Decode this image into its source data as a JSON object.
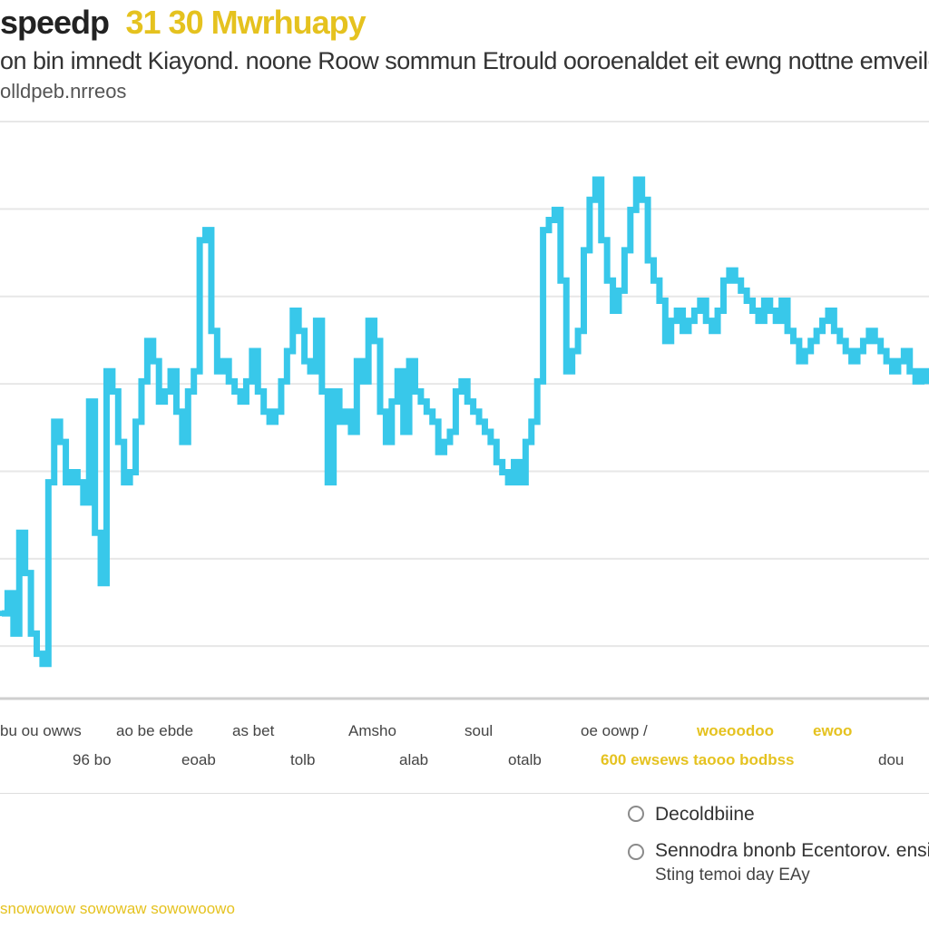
{
  "header": {
    "title": "speedp",
    "title_accent": "31 30 Mwrhuapy",
    "subtitle": "on bin imnedt Kiayond. noone Roow sommun Etrould ooroenaldet eit ewng nottne emveiler",
    "subtitle2": "olldpeb.nrreos"
  },
  "colors": {
    "series": "#38c8ea",
    "accent": "#e5c21f",
    "grid": "#e7e7e7",
    "axis": "#cfcfcf"
  },
  "chart_data": {
    "type": "line",
    "step": true,
    "grid": true,
    "ylim": [
      0,
      100
    ],
    "x": [
      0,
      1,
      2,
      3,
      4,
      5,
      6,
      7,
      8,
      9,
      10,
      11,
      12,
      13,
      14,
      15,
      16,
      17,
      18,
      19,
      20,
      21,
      22,
      23,
      24,
      25,
      26,
      27,
      28,
      29,
      30,
      31,
      32,
      33,
      34,
      35,
      36,
      37,
      38,
      39,
      40,
      41,
      42,
      43,
      44,
      45,
      46,
      47,
      48,
      49,
      50,
      51,
      52,
      53,
      54,
      55,
      56,
      57,
      58,
      59,
      60,
      61,
      62,
      63,
      64,
      65,
      66,
      67,
      68,
      69,
      70,
      71,
      72,
      73,
      74,
      75,
      76,
      77,
      78,
      79,
      80,
      81,
      82,
      83,
      84,
      85,
      86,
      87,
      88,
      89,
      90,
      91,
      92,
      93,
      94,
      95,
      96,
      97,
      98,
      99,
      100,
      101,
      102,
      103,
      104,
      105,
      106,
      107,
      108,
      109,
      110,
      111,
      112,
      113,
      114,
      115,
      116,
      117,
      118,
      119,
      120,
      121,
      122,
      123,
      124,
      125,
      126,
      127,
      128,
      129,
      130,
      131,
      132,
      133,
      134,
      135,
      136,
      137,
      138,
      139,
      140,
      141,
      142,
      143,
      144,
      145,
      146,
      147,
      148,
      149,
      150,
      151,
      152,
      153,
      154,
      155,
      156,
      157,
      158,
      159
    ],
    "series": [
      {
        "values": [
          14,
          18,
          10,
          30,
          22,
          10,
          6,
          4,
          40,
          52,
          48,
          40,
          42,
          40,
          36,
          56,
          30,
          20,
          62,
          58,
          48,
          40,
          42,
          52,
          60,
          68,
          64,
          56,
          58,
          62,
          54,
          48,
          58,
          62,
          88,
          90,
          70,
          62,
          64,
          60,
          58,
          56,
          60,
          66,
          58,
          54,
          52,
          54,
          60,
          66,
          74,
          70,
          64,
          62,
          72,
          58,
          40,
          58,
          52,
          54,
          50,
          64,
          60,
          72,
          68,
          54,
          48,
          56,
          62,
          50,
          64,
          58,
          56,
          54,
          52,
          46,
          48,
          50,
          58,
          60,
          56,
          54,
          52,
          50,
          48,
          44,
          42,
          40,
          44,
          40,
          48,
          52,
          60,
          90,
          92,
          94,
          80,
          62,
          66,
          70,
          86,
          96,
          100,
          88,
          80,
          74,
          78,
          86,
          94,
          100,
          96,
          84,
          80,
          76,
          68,
          72,
          74,
          70,
          72,
          74,
          76,
          72,
          70,
          74,
          80,
          82,
          80,
          78,
          76,
          74,
          72,
          76,
          74,
          72,
          76,
          70,
          68,
          64,
          66,
          68,
          70,
          72,
          74,
          70,
          68,
          66,
          64,
          66,
          68,
          70,
          68,
          66,
          64,
          62,
          64,
          66,
          62,
          60,
          62,
          60
        ]
      }
    ]
  },
  "x_axis": {
    "row1": [
      {
        "text": "bu ou owws",
        "accent": false
      },
      {
        "text": "ao be ebde",
        "accent": false
      },
      {
        "text": "as bet",
        "accent": false
      },
      {
        "text": "Amsho",
        "accent": false
      },
      {
        "text": "soul",
        "accent": false
      },
      {
        "text": "oe oowp /",
        "accent": false
      },
      {
        "text": "woeoodoo",
        "accent": true
      },
      {
        "text": "ewoo",
        "accent": true
      }
    ],
    "row2": [
      {
        "text": "96 bo",
        "accent": false
      },
      {
        "text": "eoab",
        "accent": false
      },
      {
        "text": "tolb",
        "accent": false
      },
      {
        "text": "alab",
        "accent": false
      },
      {
        "text": "otalb",
        "accent": false
      },
      {
        "text": "600 ewsews taooo bodbss",
        "accent": true
      },
      {
        "text": "dou",
        "accent": false
      }
    ]
  },
  "options": {
    "option1_label": "Decoldbiine",
    "option2_label": "Sennodra bnonb Ecentorov. ensi",
    "option2_sub": "Sting temoi day EAy"
  },
  "footer": {
    "text": "snowowow sowowaw sowowoowo"
  }
}
